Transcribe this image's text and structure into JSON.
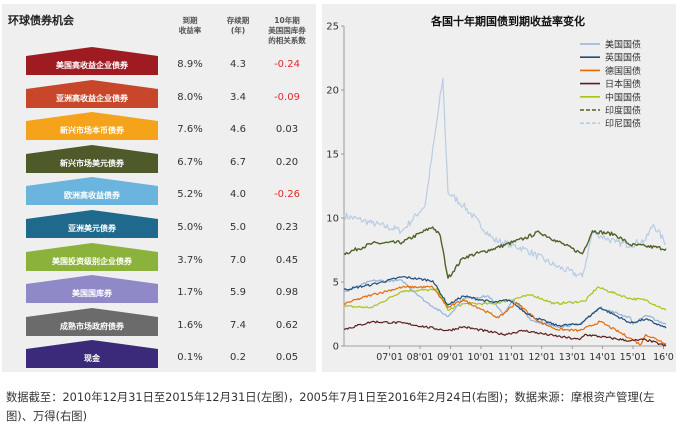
{
  "left_table": {
    "title": "环球债券机会",
    "col_headers": [
      "到期\n收益率",
      "存续期\n(年)",
      "10年期\n美国国库券\n的相关系数"
    ],
    "rows": [
      {
        "label": "美国高收益企业债券",
        "yield": "8.9%",
        "duration": "4.3",
        "corr": "-0.24",
        "color": "#9e1b22"
      },
      {
        "label": "亚洲高收益企业债券",
        "yield": "8.0%",
        "duration": "3.4",
        "corr": "-0.09",
        "color": "#c8462a"
      },
      {
        "label": "新兴市场本币债券",
        "yield": "7.6%",
        "duration": "4.6",
        "corr": "0.03",
        "color": "#f5a31a"
      },
      {
        "label": "新兴市场美元债券",
        "yield": "6.7%",
        "duration": "6.7",
        "corr": "0.20",
        "color": "#4f5a2a"
      },
      {
        "label": "欧洲高收益债券",
        "yield": "5.2%",
        "duration": "4.0",
        "corr": "-0.26",
        "color": "#6ab4dd"
      },
      {
        "label": "亚洲美元债券",
        "yield": "5.0%",
        "duration": "5.0",
        "corr": "0.23",
        "color": "#1f6a8c"
      },
      {
        "label": "美国投资级别企业债券",
        "yield": "3.7%",
        "duration": "7.0",
        "corr": "0.45",
        "color": "#8bb23a"
      },
      {
        "label": "美国国库券",
        "yield": "1.7%",
        "duration": "5.9",
        "corr": "0.98",
        "color": "#8f89c8"
      },
      {
        "label": "成熟市场政府债券",
        "yield": "1.6%",
        "duration": "7.4",
        "corr": "0.62",
        "color": "#6b6b6b"
      },
      {
        "label": "现金",
        "yield": "0.1%",
        "duration": "0.2",
        "corr": "0.05",
        "color": "#3b2a7a"
      }
    ]
  },
  "chart_data": {
    "type": "line",
    "title": "各国十年期国债到期收益率变化",
    "xlabel": "",
    "ylabel": "",
    "x_ticks": [
      "07'01",
      "08'01",
      "09'01",
      "10'01",
      "11'01",
      "12'01",
      "13'01",
      "14'01",
      "15'01",
      "16'0"
    ],
    "y_ticks": [
      "0",
      "5",
      "10",
      "15",
      "20",
      "25"
    ],
    "ylim": [
      0,
      25
    ],
    "xlim": [
      "2005-07",
      "2016-02"
    ],
    "legend_position": "top-right",
    "grid": false,
    "series": [
      {
        "name": "美国国债",
        "color": "#95b3d7",
        "dash": "solid",
        "width": 1.2,
        "points": [
          [
            "2005-07",
            4.2
          ],
          [
            "2006-06",
            5.1
          ],
          [
            "2007-06",
            5.1
          ],
          [
            "2008-03",
            3.5
          ],
          [
            "2008-12",
            2.3
          ],
          [
            "2009-06",
            3.7
          ],
          [
            "2010-04",
            3.9
          ],
          [
            "2010-10",
            2.5
          ],
          [
            "2011-02",
            3.6
          ],
          [
            "2011-09",
            2.0
          ],
          [
            "2012-07",
            1.5
          ],
          [
            "2013-04",
            1.7
          ],
          [
            "2013-12",
            3.0
          ],
          [
            "2014-12",
            2.2
          ],
          [
            "2015-01",
            1.7
          ],
          [
            "2015-06",
            2.4
          ],
          [
            "2016-02",
            1.7
          ]
        ]
      },
      {
        "name": "英国国债",
        "color": "#1f4e79",
        "dash": "solid",
        "width": 1.2,
        "points": [
          [
            "2005-07",
            4.4
          ],
          [
            "2006-06",
            4.8
          ],
          [
            "2007-06",
            5.4
          ],
          [
            "2008-06",
            5.1
          ],
          [
            "2008-12",
            3.2
          ],
          [
            "2009-06",
            3.9
          ],
          [
            "2010-06",
            3.4
          ],
          [
            "2010-12",
            3.6
          ],
          [
            "2011-09",
            2.3
          ],
          [
            "2012-07",
            1.6
          ],
          [
            "2013-04",
            1.7
          ],
          [
            "2013-12",
            3.0
          ],
          [
            "2014-12",
            1.8
          ],
          [
            "2015-06",
            2.1
          ],
          [
            "2016-02",
            1.4
          ]
        ]
      },
      {
        "name": "德国国债",
        "color": "#e36c09",
        "dash": "solid",
        "width": 1.2,
        "points": [
          [
            "2005-07",
            3.3
          ],
          [
            "2006-06",
            4.0
          ],
          [
            "2007-06",
            4.6
          ],
          [
            "2008-06",
            4.6
          ],
          [
            "2008-12",
            3.0
          ],
          [
            "2009-06",
            3.6
          ],
          [
            "2010-08",
            2.2
          ],
          [
            "2011-03",
            3.4
          ],
          [
            "2011-12",
            1.9
          ],
          [
            "2012-07",
            1.3
          ],
          [
            "2013-04",
            1.2
          ],
          [
            "2013-12",
            1.9
          ],
          [
            "2014-12",
            0.6
          ],
          [
            "2015-04",
            0.1
          ],
          [
            "2015-06",
            0.9
          ],
          [
            "2016-02",
            0.2
          ]
        ]
      },
      {
        "name": "日本国债",
        "color": "#5e1e1e",
        "dash": "solid",
        "width": 1.2,
        "points": [
          [
            "2005-07",
            1.3
          ],
          [
            "2006-06",
            1.9
          ],
          [
            "2007-06",
            1.8
          ],
          [
            "2008-12",
            1.2
          ],
          [
            "2009-06",
            1.5
          ],
          [
            "2010-10",
            0.9
          ],
          [
            "2011-06",
            1.2
          ],
          [
            "2012-06",
            0.8
          ],
          [
            "2013-04",
            0.5
          ],
          [
            "2013-06",
            0.9
          ],
          [
            "2014-12",
            0.4
          ],
          [
            "2015-06",
            0.5
          ],
          [
            "2016-02",
            0.0
          ]
        ]
      },
      {
        "name": "中国国债",
        "color": "#a8c418",
        "dash": "solid",
        "width": 1.2,
        "points": [
          [
            "2005-07",
            3.1
          ],
          [
            "2006-06",
            3.0
          ],
          [
            "2007-06",
            4.3
          ],
          [
            "2008-08",
            4.4
          ],
          [
            "2008-12",
            2.8
          ],
          [
            "2009-06",
            3.3
          ],
          [
            "2010-06",
            3.3
          ],
          [
            "2011-09",
            4.0
          ],
          [
            "2012-06",
            3.3
          ],
          [
            "2013-06",
            3.5
          ],
          [
            "2013-11",
            4.6
          ],
          [
            "2014-06",
            4.1
          ],
          [
            "2014-12",
            3.7
          ],
          [
            "2015-06",
            3.6
          ],
          [
            "2016-02",
            2.8
          ]
        ]
      },
      {
        "name": "印度国债",
        "color": "#4f6228",
        "dash": "dashed",
        "width": 1.4,
        "points": [
          [
            "2005-07",
            7.2
          ],
          [
            "2006-06",
            8.0
          ],
          [
            "2007-06",
            8.1
          ],
          [
            "2008-06",
            9.3
          ],
          [
            "2008-09",
            8.6
          ],
          [
            "2008-12",
            5.3
          ],
          [
            "2009-06",
            6.9
          ],
          [
            "2010-06",
            7.6
          ],
          [
            "2011-06",
            8.4
          ],
          [
            "2011-12",
            8.9
          ],
          [
            "2012-06",
            8.3
          ],
          [
            "2013-05",
            7.2
          ],
          [
            "2013-09",
            9.0
          ],
          [
            "2014-06",
            8.7
          ],
          [
            "2014-12",
            7.9
          ],
          [
            "2015-06",
            7.8
          ],
          [
            "2016-02",
            7.6
          ]
        ]
      },
      {
        "name": "印尼国债",
        "color": "#b8cce4",
        "dash": "dashed",
        "width": 1.2,
        "points": [
          [
            "2005-07",
            10.2
          ],
          [
            "2006-06",
            9.6
          ],
          [
            "2007-06",
            9.0
          ],
          [
            "2008-03",
            11.0
          ],
          [
            "2008-10",
            20.9
          ],
          [
            "2008-12",
            12.0
          ],
          [
            "2009-06",
            11.0
          ],
          [
            "2010-06",
            8.3
          ],
          [
            "2011-06",
            7.6
          ],
          [
            "2012-06",
            6.3
          ],
          [
            "2013-05",
            5.4
          ],
          [
            "2013-09",
            8.9
          ],
          [
            "2014-06",
            8.1
          ],
          [
            "2014-12",
            7.9
          ],
          [
            "2015-06",
            8.3
          ],
          [
            "2015-09",
            9.5
          ],
          [
            "2016-02",
            8.0
          ]
        ]
      }
    ]
  },
  "caption": "数据截至：2010年12月31日至2015年12月31日(左图)，2005年7月1日至2016年2月24日(右图)；数据来源：摩根资产管理(左图)、万得(右图)"
}
